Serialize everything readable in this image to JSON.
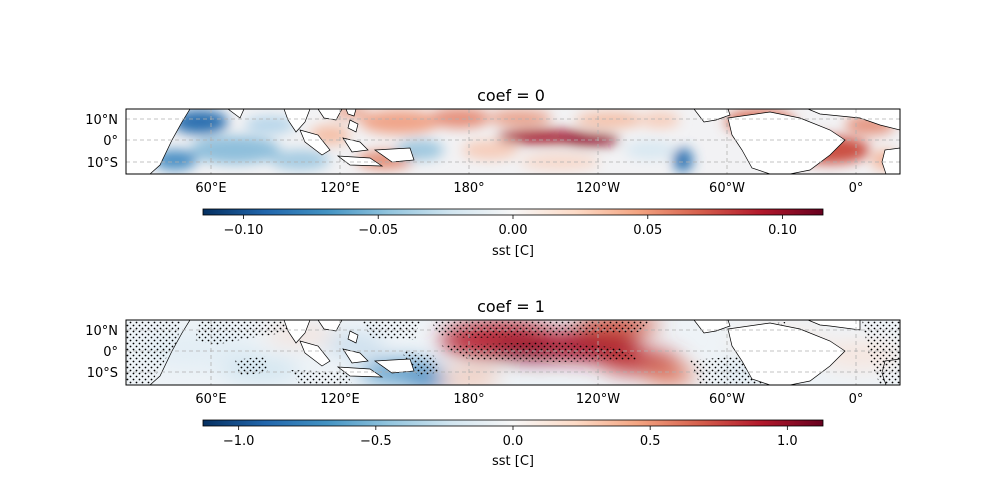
{
  "colors": {
    "negative_strong": "#053061",
    "negative_mid": "#4393c3",
    "neutral": "#f7f7f7",
    "positive_mid": "#d6604d",
    "positive_strong": "#67001f",
    "gridline": "#b0b0b0",
    "land": "#ffffff",
    "stipple": "#000000"
  },
  "colormap": "RdBu_r",
  "lon_ticks": [
    "60°E",
    "120°E",
    "180°",
    "120°W",
    "60°W",
    "0°"
  ],
  "lat_ticks": [
    "10°N",
    "0°",
    "10°S"
  ],
  "panels": [
    {
      "title": "coef = 0",
      "colorbar": {
        "label": "sst [C]",
        "ticks": [
          "−0.10",
          "−0.05",
          "0.00",
          "0.05",
          "0.10"
        ],
        "tick_values": [
          -0.1,
          -0.05,
          0.0,
          0.05,
          0.1
        ],
        "vmin": -0.115,
        "vmax": 0.115
      },
      "stippling": false
    },
    {
      "title": "coef = 1",
      "colorbar": {
        "label": "sst [C]",
        "ticks": [
          "−1.0",
          "−0.5",
          "0.0",
          "0.5",
          "1.0"
        ],
        "tick_values": [
          -1.0,
          -0.5,
          0.0,
          0.5,
          1.0
        ],
        "vmin": -1.13,
        "vmax": 1.13
      },
      "stippling": true
    }
  ]
}
